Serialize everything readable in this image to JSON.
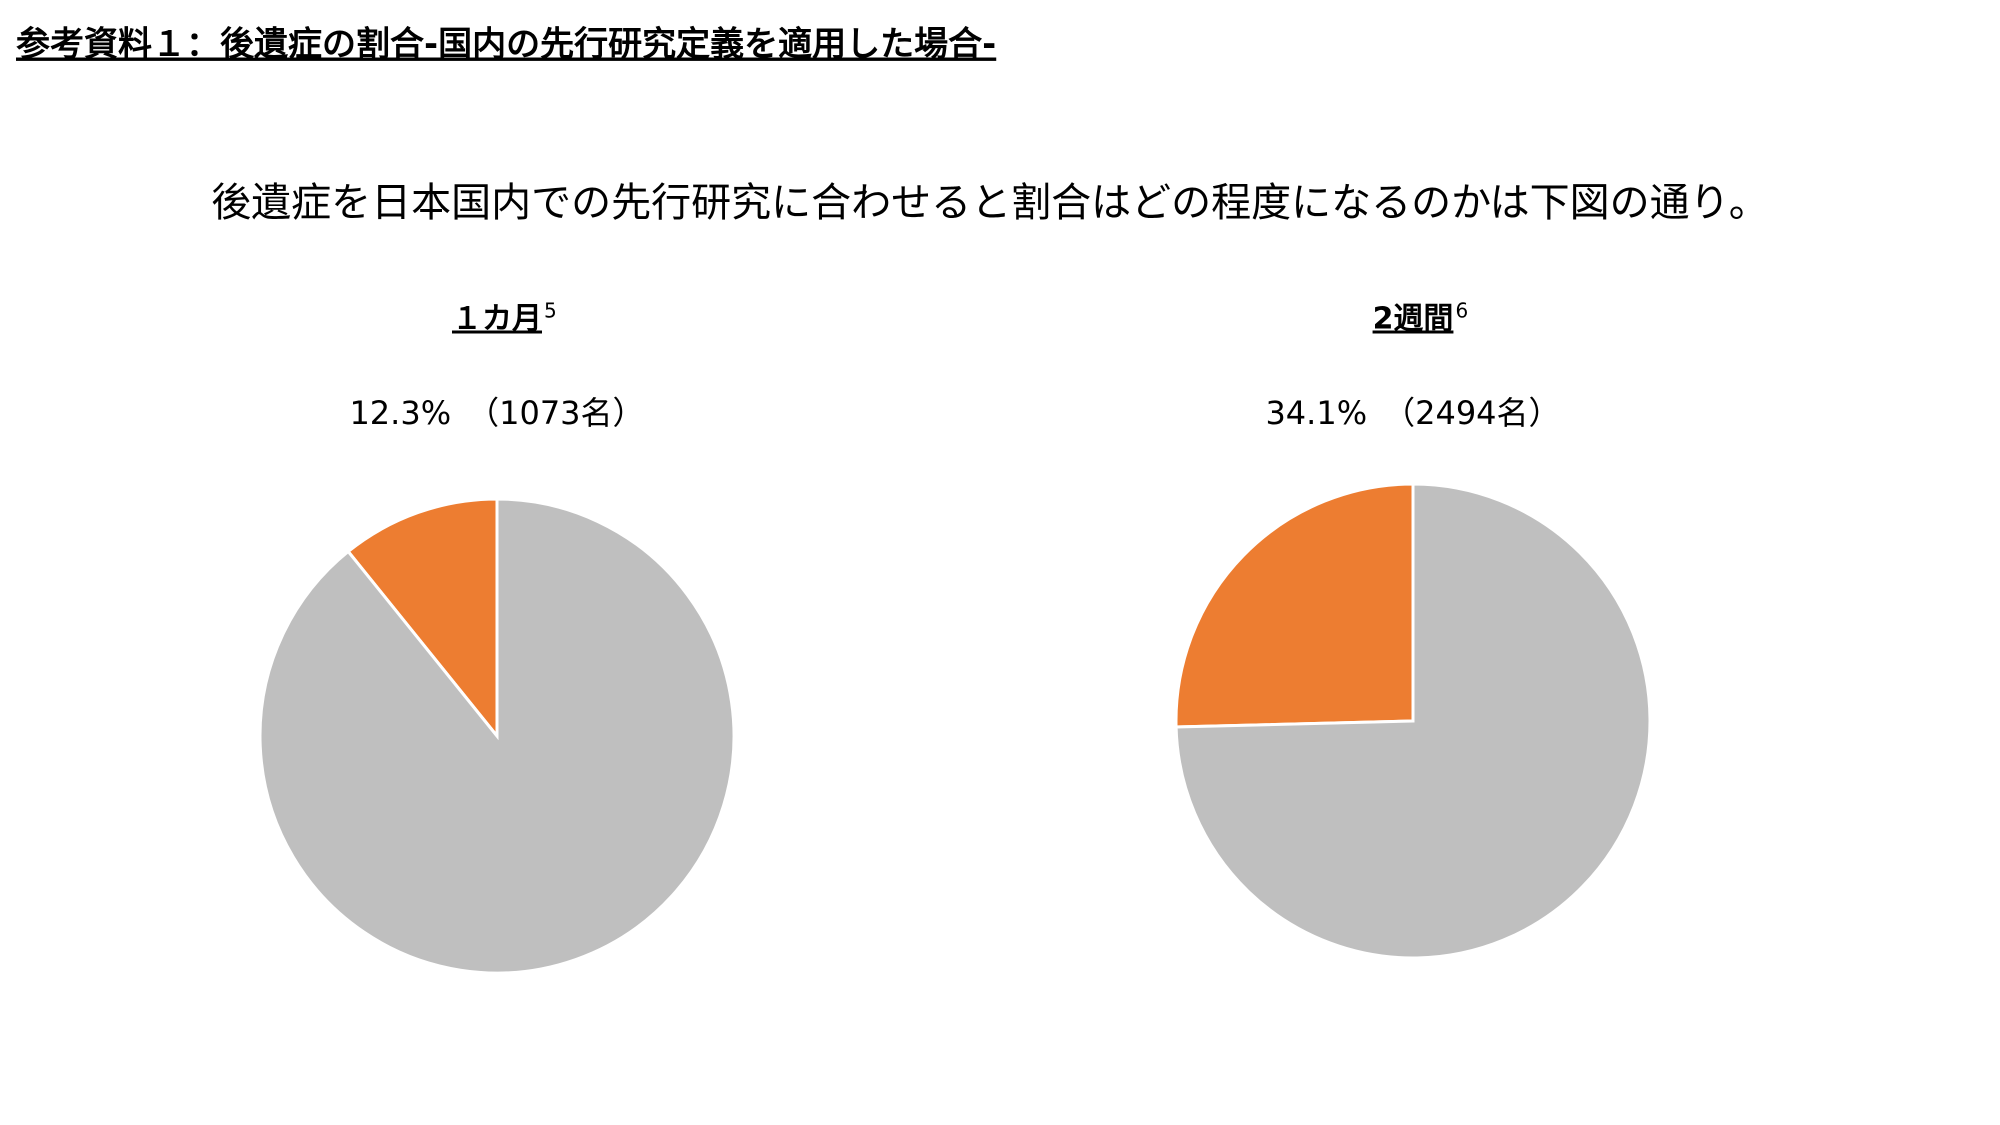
{
  "header": {
    "title": "参考資料１：後遺症の割合-国内の先行研究定義を適用した場合-",
    "lead": "後遺症を日本国内での先行研究に合わせると割合はどの程度になるのかは下図の通り。"
  },
  "chart_data": [
    {
      "type": "pie",
      "title": "１カ月",
      "title_note": "5",
      "subtitle": "12.3%　（1073名）",
      "values": [
        10.8,
        89.2
      ],
      "colors": [
        "#ed7d31",
        "#bfbfbf"
      ]
    },
    {
      "type": "pie",
      "title": "2週間",
      "title_note": "6",
      "subtitle": "34.1%　（2494名）",
      "values": [
        25.4,
        74.6
      ],
      "colors": [
        "#ed7d31",
        "#bfbfbf"
      ]
    }
  ]
}
